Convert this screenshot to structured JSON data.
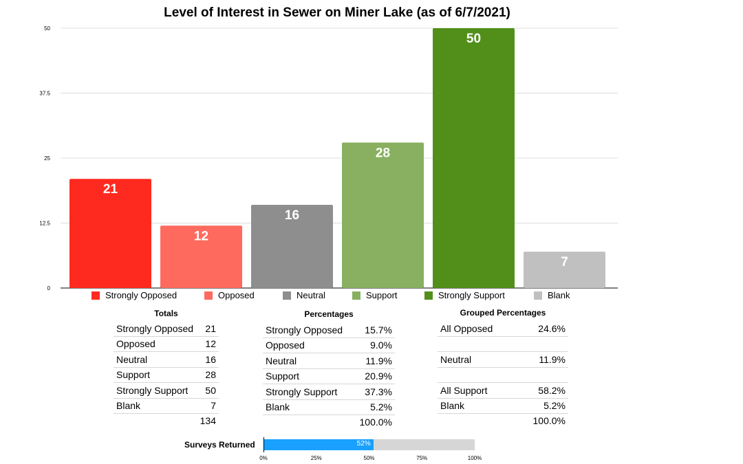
{
  "chart_data": [
    {
      "type": "bar",
      "title": "Level of Interest in Sewer on Miner Lake (as of 6/7/2021)",
      "categories": [
        "Strongly Opposed",
        "Opposed",
        "Neutral",
        "Support",
        "Strongly Support",
        "Blank"
      ],
      "values": [
        21,
        12,
        16,
        28,
        50,
        7
      ],
      "colors": [
        "#ff2a1f",
        "#ff6a5e",
        "#8e8e8e",
        "#88b060",
        "#518f1a",
        "#c0c0c0"
      ],
      "yticks": [
        "0",
        "12.5",
        "25",
        "37.5",
        "50"
      ],
      "ylim": [
        0,
        50
      ],
      "grid": true,
      "legend": "bottom"
    },
    {
      "type": "bar",
      "title": "Surveys Returned",
      "values": [
        0.52
      ],
      "value_label": "52%",
      "xticks": [
        "0%",
        "25%",
        "50%",
        "75%",
        "100%"
      ],
      "xlim": [
        0,
        1
      ]
    }
  ],
  "tables": {
    "totals": {
      "title": "Totals",
      "rows": [
        {
          "label": "Strongly Opposed",
          "value": "21"
        },
        {
          "label": "Opposed",
          "value": "12"
        },
        {
          "label": "Neutral",
          "value": "16"
        },
        {
          "label": "Support",
          "value": "28"
        },
        {
          "label": "Strongly Support",
          "value": "50"
        },
        {
          "label": "Blank",
          "value": "7"
        }
      ],
      "total": "134"
    },
    "percentages": {
      "title": "Percentages",
      "rows": [
        {
          "label": "Strongly Opposed",
          "value": "15.7%"
        },
        {
          "label": "Opposed",
          "value": "9.0%"
        },
        {
          "label": "Neutral",
          "value": "11.9%"
        },
        {
          "label": "Support",
          "value": "20.9%"
        },
        {
          "label": "Strongly Support",
          "value": "37.3%"
        },
        {
          "label": "Blank",
          "value": "5.2%"
        }
      ],
      "total": "100.0%"
    },
    "grouped": {
      "title": "Grouped Percentages",
      "rows": [
        {
          "label": "All Opposed",
          "value": "24.6%"
        },
        {
          "label": "",
          "value": ""
        },
        {
          "label": "Neutral",
          "value": "11.9%"
        },
        {
          "label": "",
          "value": ""
        },
        {
          "label": "All Support",
          "value": "58.2%"
        },
        {
          "label": "Blank",
          "value": "5.2%"
        }
      ],
      "total": "100.0%"
    }
  }
}
